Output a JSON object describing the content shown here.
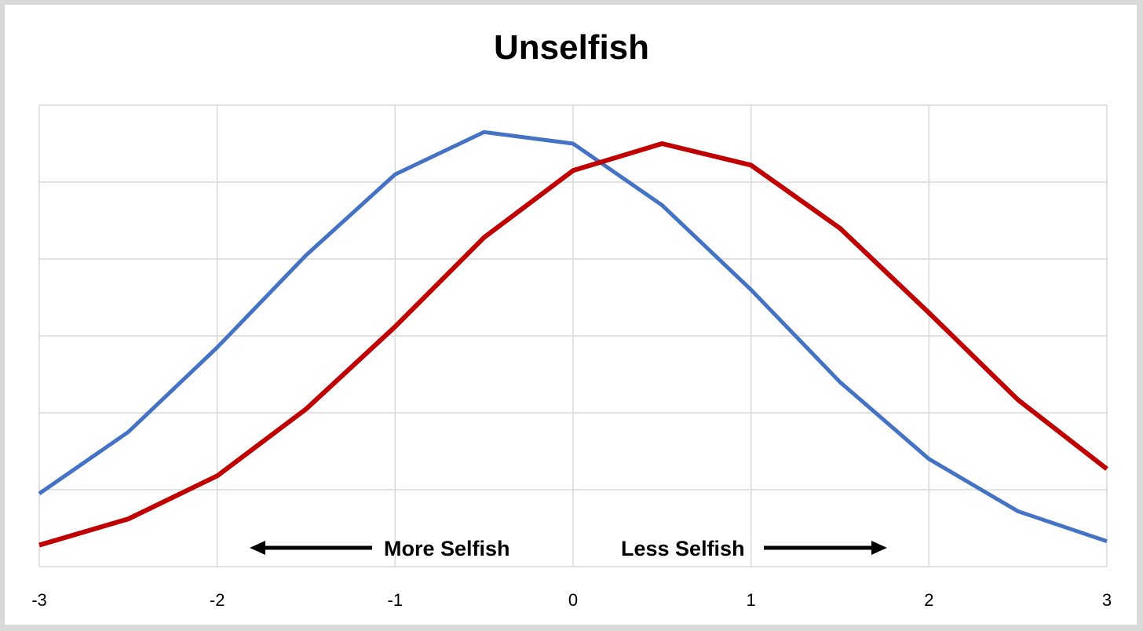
{
  "chart_data": {
    "type": "line",
    "title": "Unselfish",
    "xlabel": "",
    "ylabel": "",
    "x": [
      -3,
      -2.5,
      -2,
      -1.5,
      -1,
      -0.5,
      0,
      0.5,
      1,
      1.5,
      2,
      2.5,
      3
    ],
    "xlim": [
      -3,
      3
    ],
    "ylim": [
      0,
      6
    ],
    "x_ticks": [
      -3,
      -2,
      -1,
      0,
      1,
      2,
      3
    ],
    "x_tick_labels": [
      "-3",
      "-2",
      "-1",
      "0",
      "1",
      "2",
      "3"
    ],
    "grid": true,
    "legend": "none",
    "series": [
      {
        "color": "#4472c4",
        "values": [
          0.95,
          1.75,
          2.85,
          4.05,
          5.1,
          5.65,
          5.5,
          4.7,
          3.6,
          2.4,
          1.4,
          0.72,
          0.33
        ]
      },
      {
        "color": "#c00000",
        "values": [
          0.28,
          0.62,
          1.18,
          2.05,
          3.12,
          4.28,
          5.15,
          5.5,
          5.22,
          4.4,
          3.3,
          2.17,
          1.27
        ]
      }
    ],
    "annotations": [
      {
        "text": "More Selfish",
        "arrow": "left"
      },
      {
        "text": "Less Selfish",
        "arrow": "right"
      }
    ]
  }
}
